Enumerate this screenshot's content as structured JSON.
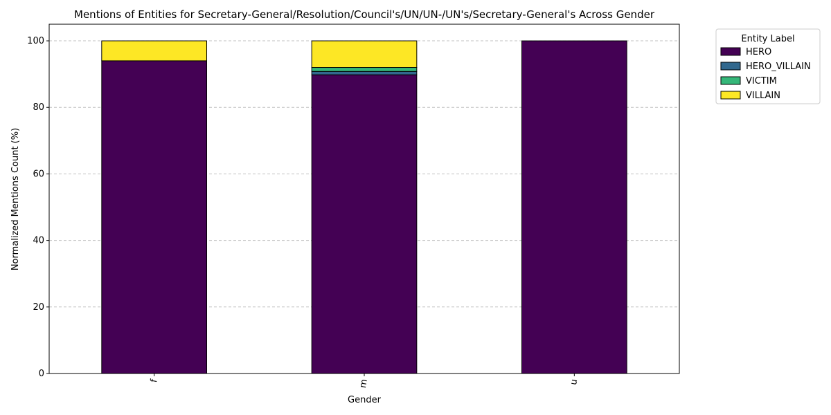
{
  "chart_data": {
    "type": "bar",
    "stacked": true,
    "title": "Mentions of Entities for Secretary-General/Resolution/Council's/UN/UN-/UN's/Secretary-General's Across Gender",
    "xlabel": "Gender",
    "ylabel": "Normalized Mentions Count (%)",
    "ylim": [
      0,
      105
    ],
    "yticks": [
      0,
      20,
      40,
      60,
      80,
      100
    ],
    "grid": "y-dashed",
    "categories": [
      "f",
      "m",
      "u"
    ],
    "legend_title": "Entity Label",
    "legend_position": "outside-top-right",
    "series": [
      {
        "name": "HERO",
        "color": "#440154",
        "values": [
          94.0,
          89.8,
          100.0
        ]
      },
      {
        "name": "HERO_VILLAIN",
        "color": "#31688e",
        "values": [
          0.0,
          1.0,
          0.0
        ]
      },
      {
        "name": "VICTIM",
        "color": "#35b779",
        "values": [
          0.0,
          1.2,
          0.0
        ]
      },
      {
        "name": "VILLAIN",
        "color": "#fde725",
        "values": [
          6.0,
          8.0,
          0.0
        ]
      }
    ]
  }
}
